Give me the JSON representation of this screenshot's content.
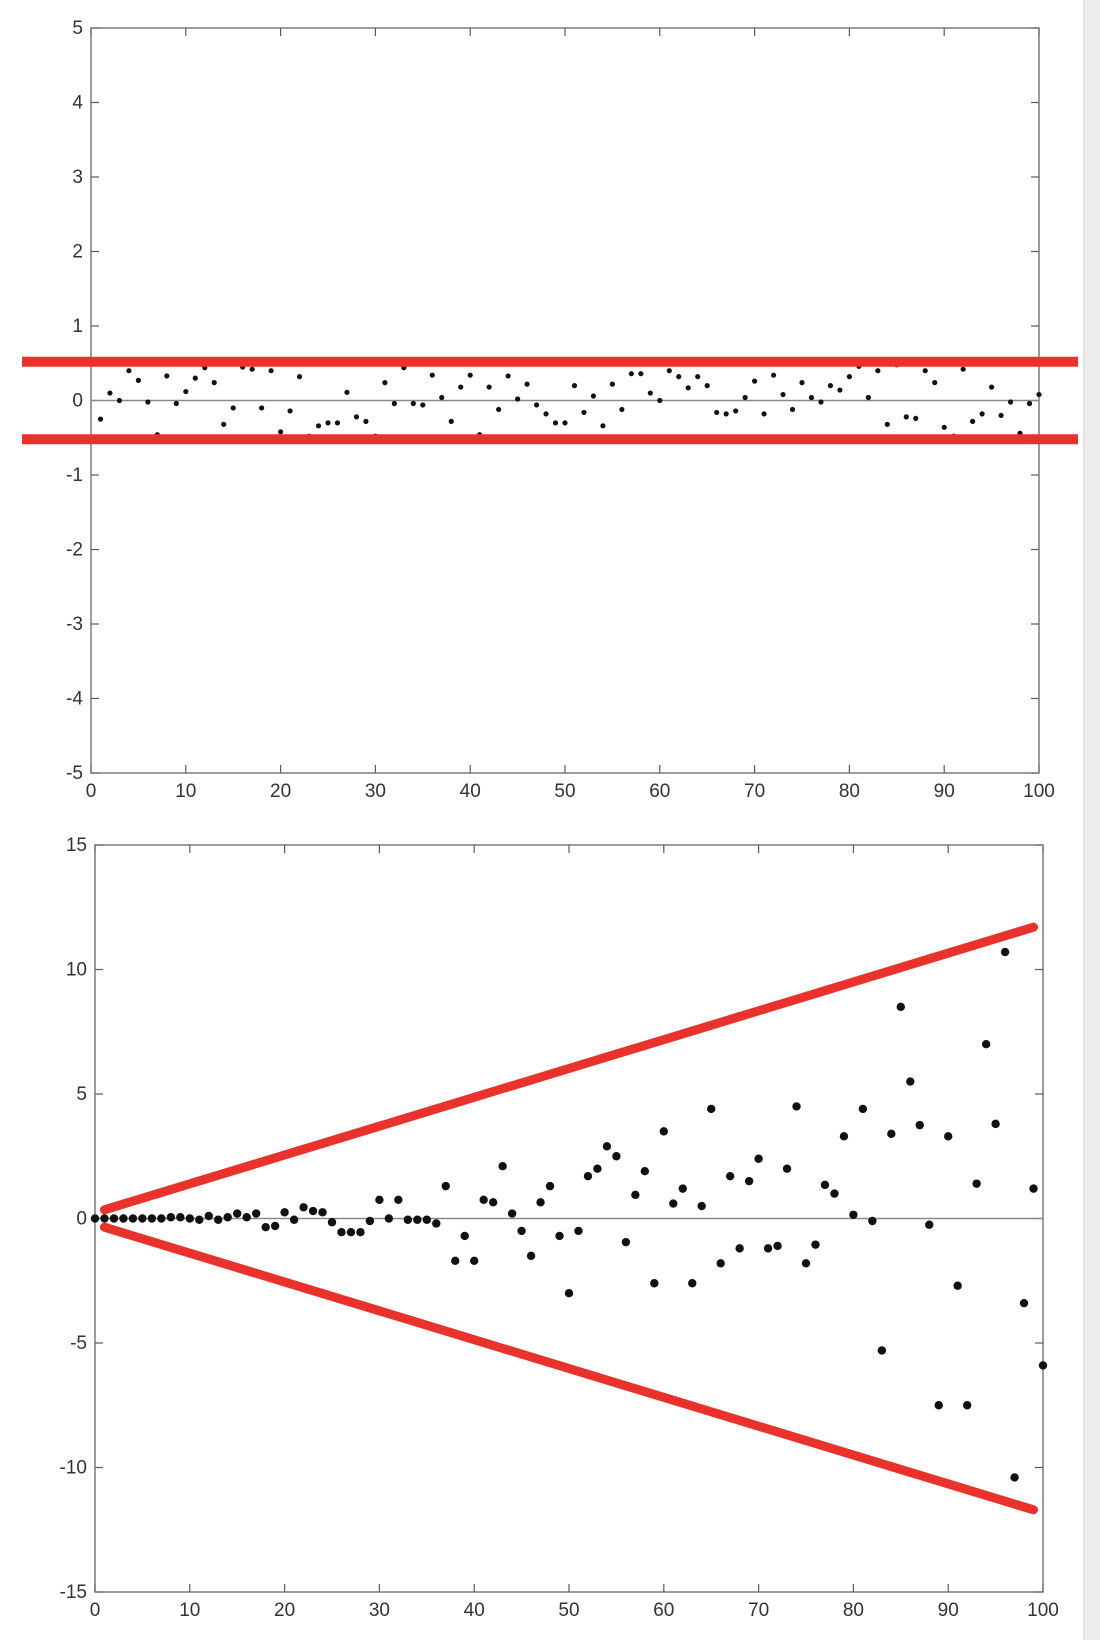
{
  "colors": {
    "axis": "#5a5a5a",
    "zero_line": "#8a8a8a",
    "points": "#111111",
    "bounds": "#e8322b",
    "background": "#ffffff"
  },
  "chart_data": [
    {
      "type": "scatter",
      "title": "",
      "xlabel": "",
      "ylabel": "",
      "xlim": [
        0,
        100
      ],
      "ylim": [
        -5,
        5
      ],
      "xticks": [
        "0",
        "10",
        "20",
        "30",
        "40",
        "50",
        "60",
        "70",
        "80",
        "90",
        "100"
      ],
      "yticks": [
        "5",
        "4",
        "3",
        "2",
        "1",
        "0",
        "-1",
        "-2",
        "-3",
        "-4",
        "-5"
      ],
      "zero_line": true,
      "grid": false,
      "series": [
        {
          "x": [
            1,
            2,
            3,
            4,
            5,
            6,
            7,
            8,
            9,
            10,
            11,
            12,
            13,
            14,
            15,
            16,
            17,
            18,
            19,
            20,
            21,
            22,
            23,
            24,
            25,
            26,
            27,
            28,
            29,
            30,
            31,
            32,
            33,
            34,
            35,
            36,
            37,
            38,
            39,
            40,
            41,
            42,
            43,
            44,
            45,
            46,
            47,
            48,
            49,
            50,
            51,
            52,
            53,
            54,
            55,
            56,
            57,
            58,
            59,
            60,
            61,
            62,
            63,
            64,
            65,
            66,
            67,
            68,
            69,
            70,
            71,
            72,
            73,
            74,
            75,
            76,
            77,
            78,
            79,
            80,
            81,
            82,
            83,
            84,
            85,
            86,
            87,
            88,
            89,
            90,
            91,
            92,
            93,
            94,
            95,
            96,
            97,
            98,
            99,
            100
          ],
          "y": [
            -0.25,
            0.1,
            0.0,
            0.4,
            0.27,
            -0.02,
            -0.46,
            0.33,
            -0.04,
            0.12,
            0.3,
            0.44,
            0.24,
            -0.32,
            -0.1,
            0.45,
            0.42,
            -0.1,
            0.4,
            -0.42,
            -0.14,
            0.32,
            -0.48,
            -0.34,
            -0.3,
            -0.3,
            0.11,
            -0.22,
            -0.28,
            -0.48,
            0.24,
            -0.04,
            0.44,
            -0.04,
            -0.06,
            0.34,
            0.04,
            -0.28,
            0.18,
            0.34,
            -0.46,
            0.18,
            -0.12,
            0.33,
            0.02,
            0.22,
            -0.06,
            -0.18,
            -0.3,
            -0.3,
            0.2,
            -0.16,
            0.06,
            -0.34,
            0.22,
            -0.12,
            0.36,
            0.36,
            0.1,
            0.0,
            0.4,
            0.32,
            0.17,
            0.32,
            0.2,
            -0.16,
            -0.18,
            -0.14,
            0.04,
            0.26,
            -0.18,
            0.34,
            0.08,
            -0.12,
            0.24,
            0.04,
            -0.02,
            0.2,
            0.14,
            0.32,
            0.46,
            0.04,
            0.4,
            -0.32,
            0.48,
            -0.22,
            -0.24,
            0.4,
            0.24,
            -0.36,
            -0.48,
            0.42,
            -0.28,
            -0.18,
            0.18,
            -0.2,
            -0.02,
            -0.44,
            -0.04,
            0.08
          ],
          "marker_size": 2.6
        }
      ],
      "annotations": [
        {
          "type": "horizontal_line",
          "y": 0.52
        },
        {
          "type": "horizontal_line",
          "y": -0.52
        }
      ]
    },
    {
      "type": "scatter",
      "title": "",
      "xlabel": "",
      "ylabel": "",
      "xlim": [
        0,
        100
      ],
      "ylim": [
        -15,
        15
      ],
      "xticks": [
        "0",
        "10",
        "20",
        "30",
        "40",
        "50",
        "60",
        "70",
        "80",
        "90",
        "100"
      ],
      "yticks": [
        "15",
        "10",
        "5",
        "0",
        "-5",
        "-10",
        "-15"
      ],
      "zero_line": true,
      "grid": false,
      "series": [
        {
          "x": [
            0,
            1,
            2,
            3,
            4,
            5,
            6,
            7,
            8,
            9,
            10,
            11,
            12,
            13,
            14,
            15,
            16,
            17,
            18,
            19,
            20,
            21,
            22,
            23,
            24,
            25,
            26,
            27,
            28,
            29,
            30,
            31,
            32,
            33,
            34,
            35,
            36,
            37,
            38,
            39,
            40,
            41,
            42,
            43,
            44,
            45,
            46,
            47,
            48,
            49,
            50,
            51,
            52,
            53,
            54,
            55,
            56,
            57,
            58,
            59,
            60,
            61,
            62,
            63,
            64,
            65,
            66,
            67,
            68,
            69,
            70,
            71,
            72,
            73,
            74,
            75,
            76,
            77,
            78,
            79,
            80,
            81,
            82,
            83,
            84,
            85,
            86,
            87,
            88,
            89,
            90,
            91,
            92,
            93,
            94,
            95,
            96,
            97,
            98,
            99,
            100
          ],
          "y": [
            0.0,
            0.0,
            0.0,
            0.0,
            0.0,
            0.0,
            0.0,
            0.0,
            0.05,
            0.05,
            0.0,
            -0.05,
            0.1,
            -0.05,
            0.05,
            0.2,
            0.05,
            0.2,
            -0.35,
            -0.3,
            0.25,
            -0.05,
            0.45,
            0.3,
            0.25,
            -0.15,
            -0.55,
            -0.55,
            -0.55,
            -0.1,
            0.75,
            0.0,
            0.75,
            -0.05,
            -0.05,
            -0.05,
            -0.2,
            1.3,
            -1.7,
            -0.7,
            -1.7,
            0.75,
            0.65,
            2.1,
            0.2,
            -0.5,
            -1.5,
            0.65,
            1.3,
            -0.7,
            -3.0,
            -0.5,
            1.7,
            2.0,
            2.9,
            2.5,
            -0.95,
            0.95,
            1.9,
            -2.6,
            3.5,
            0.6,
            1.2,
            -2.6,
            0.5,
            4.4,
            -1.8,
            1.7,
            -1.2,
            1.5,
            2.4,
            -1.2,
            -1.1,
            2.0,
            4.5,
            -1.8,
            -1.05,
            1.35,
            1.0,
            3.3,
            0.15,
            4.4,
            -0.1,
            -5.3,
            3.4,
            8.5,
            5.5,
            3.75,
            -0.25,
            -7.5,
            3.3,
            -2.7,
            -7.5,
            1.4,
            7.0,
            3.8,
            10.7,
            -10.4,
            -3.4,
            1.2,
            -5.9
          ],
          "marker_size": 4.2
        }
      ],
      "annotations": [
        {
          "type": "line",
          "x": [
            1,
            99
          ],
          "y": [
            0.35,
            11.7
          ]
        },
        {
          "type": "line",
          "x": [
            1,
            99
          ],
          "y": [
            -0.35,
            -11.7
          ]
        }
      ]
    }
  ]
}
